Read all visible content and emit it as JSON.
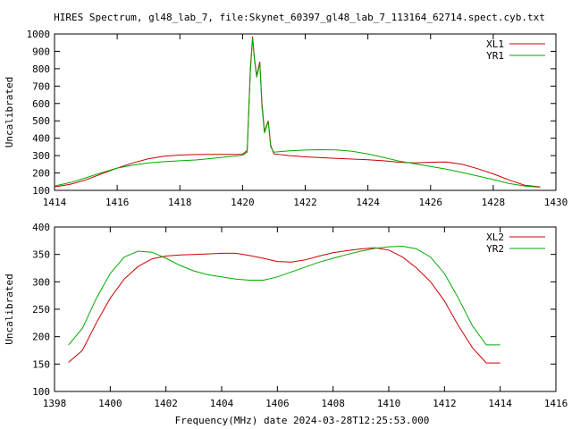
{
  "figure": {
    "title": "HIRES Spectrum, gl48_lab_7, file:Skynet_60397_gl48_lab_7_113164_62714.spect.cyb.txt",
    "xlabel": "Frequency(MHz) date 2024-03-28T12:25:53.000"
  },
  "chart_data": [
    {
      "type": "line",
      "ylabel": "Uncalibrated",
      "xlim": [
        1414,
        1430
      ],
      "ylim": [
        100,
        1000
      ],
      "xticks": [
        "1414",
        "1416",
        "1418",
        "1420",
        "1422",
        "1424",
        "1426",
        "1428",
        "1430"
      ],
      "yticks": [
        "100",
        "200",
        "300",
        "400",
        "500",
        "600",
        "700",
        "800",
        "900",
        "1000"
      ],
      "legend_position": "top-right",
      "grid": false,
      "series": [
        {
          "name": "XL1",
          "color": "#cc0000",
          "points": [
            [
              1414.0,
              120
            ],
            [
              1414.5,
              135
            ],
            [
              1415.0,
              160
            ],
            [
              1415.5,
              195
            ],
            [
              1416.0,
              228
            ],
            [
              1416.5,
              258
            ],
            [
              1417.0,
              282
            ],
            [
              1417.5,
              297
            ],
            [
              1418.0,
              303
            ],
            [
              1418.5,
              306
            ],
            [
              1419.0,
              307
            ],
            [
              1419.5,
              307
            ],
            [
              1420.0,
              308
            ],
            [
              1420.15,
              330
            ],
            [
              1420.25,
              800
            ],
            [
              1420.32,
              985
            ],
            [
              1420.38,
              860
            ],
            [
              1420.45,
              760
            ],
            [
              1420.55,
              840
            ],
            [
              1420.62,
              600
            ],
            [
              1420.7,
              440
            ],
            [
              1420.82,
              500
            ],
            [
              1420.9,
              360
            ],
            [
              1421.0,
              310
            ],
            [
              1421.5,
              300
            ],
            [
              1422.0,
              293
            ],
            [
              1422.5,
              288
            ],
            [
              1423.0,
              284
            ],
            [
              1423.5,
              280
            ],
            [
              1424.0,
              276
            ],
            [
              1424.5,
              270
            ],
            [
              1425.0,
              262
            ],
            [
              1425.5,
              258
            ],
            [
              1426.0,
              262
            ],
            [
              1426.5,
              263
            ],
            [
              1427.0,
              250
            ],
            [
              1427.5,
              225
            ],
            [
              1428.0,
              195
            ],
            [
              1428.5,
              160
            ],
            [
              1429.0,
              130
            ],
            [
              1429.5,
              120
            ]
          ]
        },
        {
          "name": "YR1",
          "color": "#00aa00",
          "points": [
            [
              1414.0,
              125
            ],
            [
              1414.5,
              145
            ],
            [
              1415.0,
              172
            ],
            [
              1415.5,
              202
            ],
            [
              1416.0,
              228
            ],
            [
              1416.5,
              245
            ],
            [
              1417.0,
              258
            ],
            [
              1417.5,
              265
            ],
            [
              1418.0,
              270
            ],
            [
              1418.5,
              275
            ],
            [
              1419.0,
              283
            ],
            [
              1419.5,
              293
            ],
            [
              1420.0,
              302
            ],
            [
              1420.15,
              320
            ],
            [
              1420.25,
              780
            ],
            [
              1420.32,
              975
            ],
            [
              1420.38,
              850
            ],
            [
              1420.45,
              750
            ],
            [
              1420.55,
              830
            ],
            [
              1420.62,
              580
            ],
            [
              1420.7,
              430
            ],
            [
              1420.82,
              495
            ],
            [
              1420.9,
              350
            ],
            [
              1421.0,
              320
            ],
            [
              1421.5,
              328
            ],
            [
              1422.0,
              332
            ],
            [
              1422.5,
              334
            ],
            [
              1423.0,
              333
            ],
            [
              1423.5,
              325
            ],
            [
              1424.0,
              310
            ],
            [
              1424.5,
              290
            ],
            [
              1425.0,
              268
            ],
            [
              1425.5,
              253
            ],
            [
              1426.0,
              238
            ],
            [
              1426.5,
              222
            ],
            [
              1427.0,
              203
            ],
            [
              1427.5,
              183
            ],
            [
              1428.0,
              162
            ],
            [
              1428.5,
              140
            ],
            [
              1429.0,
              125
            ],
            [
              1429.5,
              118
            ]
          ]
        }
      ]
    },
    {
      "type": "line",
      "ylabel": "Uncalibrated",
      "xlim": [
        1398,
        1416
      ],
      "ylim": [
        100,
        400
      ],
      "xticks": [
        "1398",
        "1400",
        "1402",
        "1404",
        "1406",
        "1408",
        "1410",
        "1412",
        "1414",
        "1416"
      ],
      "yticks": [
        "100",
        "150",
        "200",
        "250",
        "300",
        "350",
        "400"
      ],
      "legend_position": "top-right",
      "grid": false,
      "series": [
        {
          "name": "XL2",
          "color": "#cc0000",
          "points": [
            [
              1398.5,
              153
            ],
            [
              1399.0,
              175
            ],
            [
              1399.5,
              225
            ],
            [
              1400.0,
              270
            ],
            [
              1400.5,
              305
            ],
            [
              1401.0,
              328
            ],
            [
              1401.5,
              342
            ],
            [
              1402.0,
              347
            ],
            [
              1402.5,
              349
            ],
            [
              1403.0,
              350
            ],
            [
              1403.5,
              351
            ],
            [
              1404.0,
              352
            ],
            [
              1404.5,
              352
            ],
            [
              1405.0,
              348
            ],
            [
              1405.5,
              343
            ],
            [
              1406.0,
              337
            ],
            [
              1406.5,
              336
            ],
            [
              1407.0,
              340
            ],
            [
              1407.5,
              347
            ],
            [
              1408.0,
              353
            ],
            [
              1408.5,
              357
            ],
            [
              1409.0,
              360
            ],
            [
              1409.5,
              362
            ],
            [
              1410.0,
              358
            ],
            [
              1410.5,
              345
            ],
            [
              1411.0,
              325
            ],
            [
              1411.5,
              300
            ],
            [
              1412.0,
              265
            ],
            [
              1412.5,
              220
            ],
            [
              1413.0,
              180
            ],
            [
              1413.5,
              152
            ],
            [
              1414.0,
              152
            ]
          ]
        },
        {
          "name": "YR2",
          "color": "#00aa00",
          "points": [
            [
              1398.5,
              185
            ],
            [
              1399.0,
              215
            ],
            [
              1399.5,
              270
            ],
            [
              1400.0,
              315
            ],
            [
              1400.5,
              345
            ],
            [
              1401.0,
              356
            ],
            [
              1401.5,
              354
            ],
            [
              1402.0,
              343
            ],
            [
              1402.5,
              330
            ],
            [
              1403.0,
              320
            ],
            [
              1403.5,
              313
            ],
            [
              1404.0,
              309
            ],
            [
              1404.5,
              305
            ],
            [
              1405.0,
              303
            ],
            [
              1405.5,
              303
            ],
            [
              1406.0,
              309
            ],
            [
              1406.5,
              318
            ],
            [
              1407.0,
              327
            ],
            [
              1407.5,
              336
            ],
            [
              1408.0,
              343
            ],
            [
              1408.5,
              350
            ],
            [
              1409.0,
              356
            ],
            [
              1409.5,
              361
            ],
            [
              1410.0,
              364
            ],
            [
              1410.5,
              365
            ],
            [
              1411.0,
              360
            ],
            [
              1411.5,
              345
            ],
            [
              1412.0,
              315
            ],
            [
              1412.5,
              270
            ],
            [
              1413.0,
              220
            ],
            [
              1413.5,
              185
            ],
            [
              1414.0,
              185
            ]
          ]
        }
      ]
    }
  ]
}
